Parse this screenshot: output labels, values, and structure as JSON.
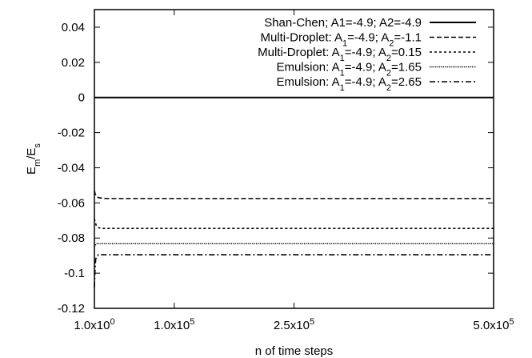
{
  "chart_data": {
    "type": "line",
    "xlabel": "n of time steps",
    "ylabel": {
      "base": "E",
      "sub1": "m",
      "slash": "/E",
      "sub2": "s"
    },
    "xlim": [
      1,
      500000
    ],
    "ylim": [
      -0.12,
      0.05
    ],
    "x_ticks": [
      {
        "value": 1,
        "mant": "1.0x10",
        "exp": "0"
      },
      {
        "value": 100000,
        "mant": "1.0x10",
        "exp": "5"
      },
      {
        "value": 250000,
        "mant": "2.5x10",
        "exp": "5"
      },
      {
        "value": 500000,
        "mant": "5.0x10",
        "exp": "5"
      }
    ],
    "y_ticks": [
      {
        "value": 0.04,
        "label": "0.04"
      },
      {
        "value": 0.02,
        "label": "0.02"
      },
      {
        "value": 0,
        "label": "0"
      },
      {
        "value": -0.02,
        "label": "-0.02"
      },
      {
        "value": -0.04,
        "label": "-0.04"
      },
      {
        "value": -0.06,
        "label": "-0.06"
      },
      {
        "value": -0.08,
        "label": "-0.08"
      },
      {
        "value": -0.1,
        "label": "-0.1"
      },
      {
        "value": -0.12,
        "label": "-0.12"
      }
    ],
    "grid": false,
    "legend_position": "top-right",
    "series": [
      {
        "label_parts": [
          {
            "t": "Shan-Chen; A1=-4.9; A2=-4.9"
          }
        ],
        "dash": "solid",
        "x": [
          1,
          500000
        ],
        "y": [
          0,
          0
        ]
      },
      {
        "label_parts": [
          {
            "t": "Multi-Droplet: A"
          },
          {
            "s": "1"
          },
          {
            "t": "=-4.9; A"
          },
          {
            "s": "2"
          },
          {
            "t": "=-1.1"
          }
        ],
        "dash": "dashed",
        "x": [
          1,
          1000,
          2500,
          5000,
          8000,
          15000,
          500000
        ],
        "y": [
          -0.053,
          -0.055,
          -0.056,
          -0.057,
          -0.0572,
          -0.0575,
          -0.0575
        ]
      },
      {
        "label_parts": [
          {
            "t": "Multi-Droplet: A"
          },
          {
            "s": "1"
          },
          {
            "t": "=-4.9; A"
          },
          {
            "s": "2"
          },
          {
            "t": "=0.15"
          }
        ],
        "dash": "dotted",
        "x": [
          1,
          1000,
          2500,
          5000,
          8000,
          500000
        ],
        "y": [
          -0.069,
          -0.071,
          -0.073,
          -0.074,
          -0.0745,
          -0.0745
        ]
      },
      {
        "label_parts": [
          {
            "t": "Emulsion: A"
          },
          {
            "s": "1"
          },
          {
            "t": "=-4.9; A"
          },
          {
            "s": "2"
          },
          {
            "t": "=1.65"
          }
        ],
        "dash": "fine-dotted",
        "x": [
          1,
          1000,
          3000,
          500000
        ],
        "y": [
          -0.085,
          -0.084,
          -0.0832,
          -0.0832
        ]
      },
      {
        "label_parts": [
          {
            "t": "Emulsion: A"
          },
          {
            "s": "1"
          },
          {
            "t": "=-4.9; A"
          },
          {
            "s": "2"
          },
          {
            "t": "=2.65"
          }
        ],
        "dash": "dash-dot",
        "x": [
          1,
          800,
          1600,
          3000,
          5000,
          500000
        ],
        "y": [
          -0.108,
          -0.098,
          -0.092,
          -0.0905,
          -0.0895,
          -0.0895
        ]
      }
    ]
  }
}
